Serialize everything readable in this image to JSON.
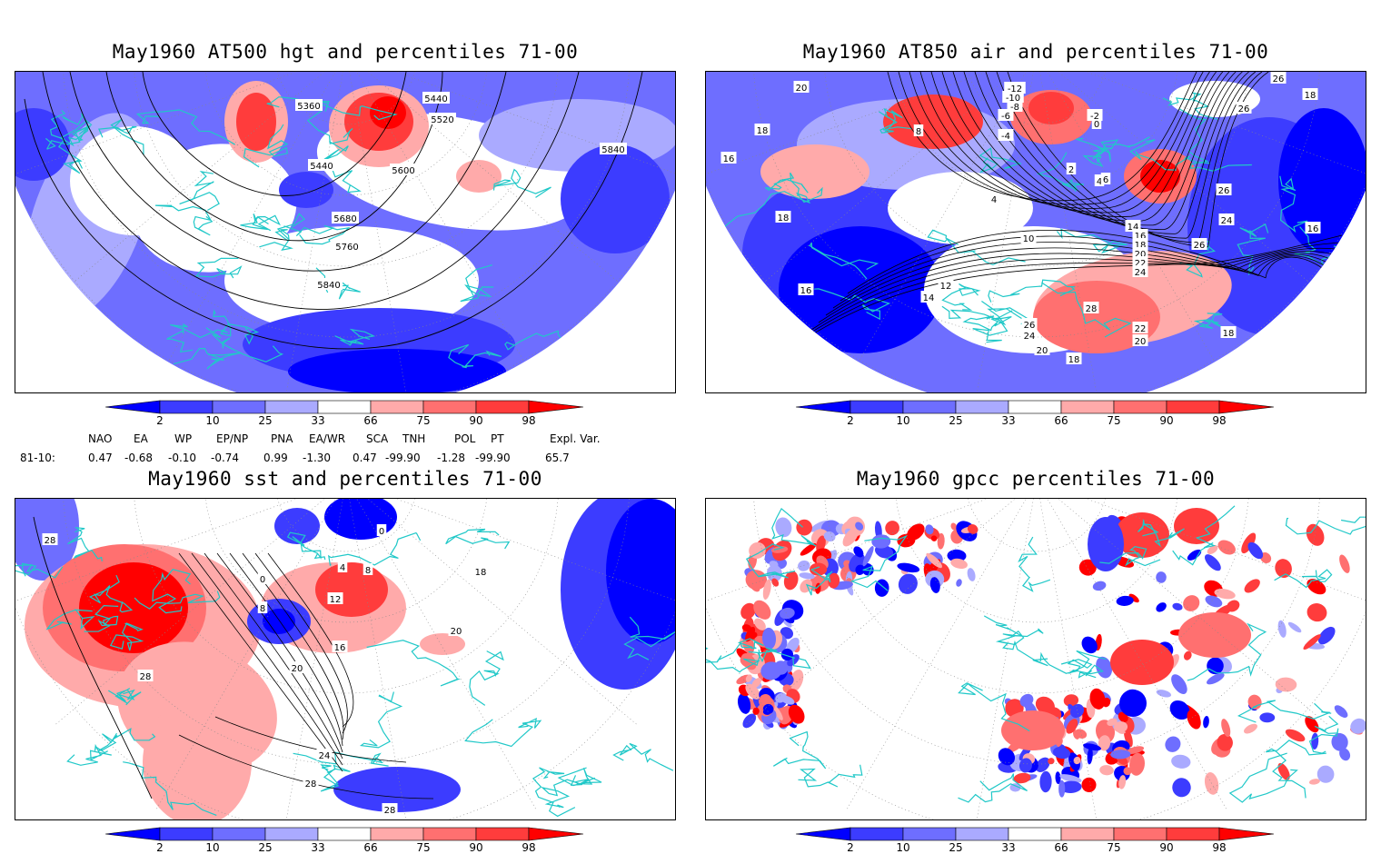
{
  "colors": {
    "dark_blue": "#0000ff",
    "mid_blue": "#3c3cff",
    "light_blue": "#6e6eff",
    "pale_blue": "#aaaaff",
    "pale_red": "#ffaaaa",
    "light_red": "#ff7070",
    "mid_red": "#ff3c3c",
    "dark_red": "#ff0000",
    "coast": "#20c8c8",
    "contour": "#000000"
  },
  "panels": [
    {
      "id": "hgt",
      "title": "May1960 AT500 hgt and percentiles 71-00",
      "contour_labels": [
        "5360",
        "5440",
        "5520",
        "5440",
        "5600",
        "5680",
        "5760",
        "5840",
        "5840"
      ]
    },
    {
      "id": "air",
      "title": "May1960 AT850 air and percentiles 71-00",
      "contour_labels": [
        "20",
        "18",
        "16",
        "18",
        "16",
        "8",
        "4",
        "2",
        "4",
        "6",
        "0",
        "-2",
        "-4",
        "-6",
        "-8",
        "-10",
        "-12",
        "26",
        "18",
        "26",
        "26",
        "24",
        "16",
        "10",
        "14",
        "16",
        "18",
        "20",
        "22",
        "24",
        "26",
        "14",
        "12",
        "28",
        "26",
        "24",
        "22",
        "20",
        "20",
        "18",
        "18"
      ]
    },
    {
      "id": "sst",
      "title": "May1960 sst and percentiles 71-00",
      "contour_labels": [
        "28",
        "0",
        "4",
        "8",
        "12",
        "18",
        "16",
        "20",
        "20",
        "24",
        "28",
        "28",
        "28",
        "8",
        "0"
      ]
    },
    {
      "id": "gpcc",
      "title": "May1960 gpcc percentiles 71-00",
      "contour_labels": []
    }
  ],
  "colorbar": {
    "tick_labels": [
      "2",
      "10",
      "25",
      "33",
      "66",
      "75",
      "90",
      "98"
    ]
  },
  "indices": {
    "headers": [
      "NAO",
      "EA",
      "WP",
      "EP/NP",
      "PNA",
      "EA/WR",
      "SCA",
      "TNH",
      "POL",
      "PT",
      "Expl. Var."
    ],
    "row_label": "81-10:",
    "values": [
      "0.47",
      "-0.68",
      "-0.10",
      "-0.74",
      "0.99",
      "-1.30",
      "0.47",
      "-99.90",
      "-1.28",
      "-99.90",
      "65.7"
    ]
  }
}
